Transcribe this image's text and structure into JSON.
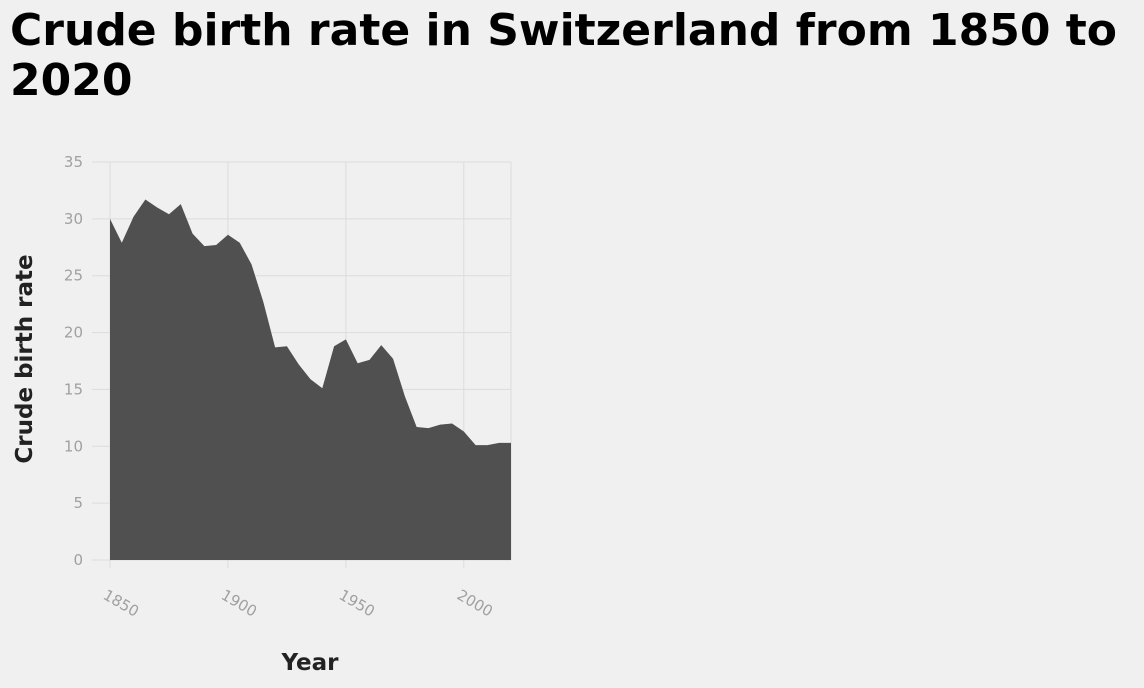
{
  "chart_data": {
    "type": "area",
    "title": "Crude birth rate in Switzerland from 1850 to 2020",
    "xlabel": "Year",
    "ylabel": "Crude birth rate",
    "xlim": [
      1850,
      2020
    ],
    "ylim": [
      0,
      35
    ],
    "x_ticks": [
      1850,
      1900,
      1950,
      2000
    ],
    "y_ticks": [
      0,
      5,
      10,
      15,
      20,
      25,
      30,
      35
    ],
    "grid": true,
    "legend": "none",
    "series": [
      {
        "color": "#505050",
        "x": [
          1850,
          1855,
          1860,
          1865,
          1870,
          1875,
          1880,
          1885,
          1890,
          1895,
          1900,
          1905,
          1910,
          1915,
          1920,
          1925,
          1930,
          1935,
          1940,
          1945,
          1950,
          1955,
          1960,
          1965,
          1970,
          1975,
          1980,
          1985,
          1990,
          1995,
          2000,
          2005,
          2010,
          2015,
          2020
        ],
        "values": [
          30.0,
          27.9,
          30.2,
          31.7,
          31.0,
          30.4,
          31.3,
          28.7,
          27.6,
          27.7,
          28.6,
          27.9,
          26.0,
          22.7,
          18.7,
          18.8,
          17.2,
          15.9,
          15.1,
          18.8,
          19.4,
          17.3,
          17.6,
          18.9,
          17.7,
          14.4,
          11.7,
          11.6,
          11.9,
          12.0,
          11.3,
          10.1,
          10.1,
          10.3,
          10.3
        ]
      }
    ]
  }
}
